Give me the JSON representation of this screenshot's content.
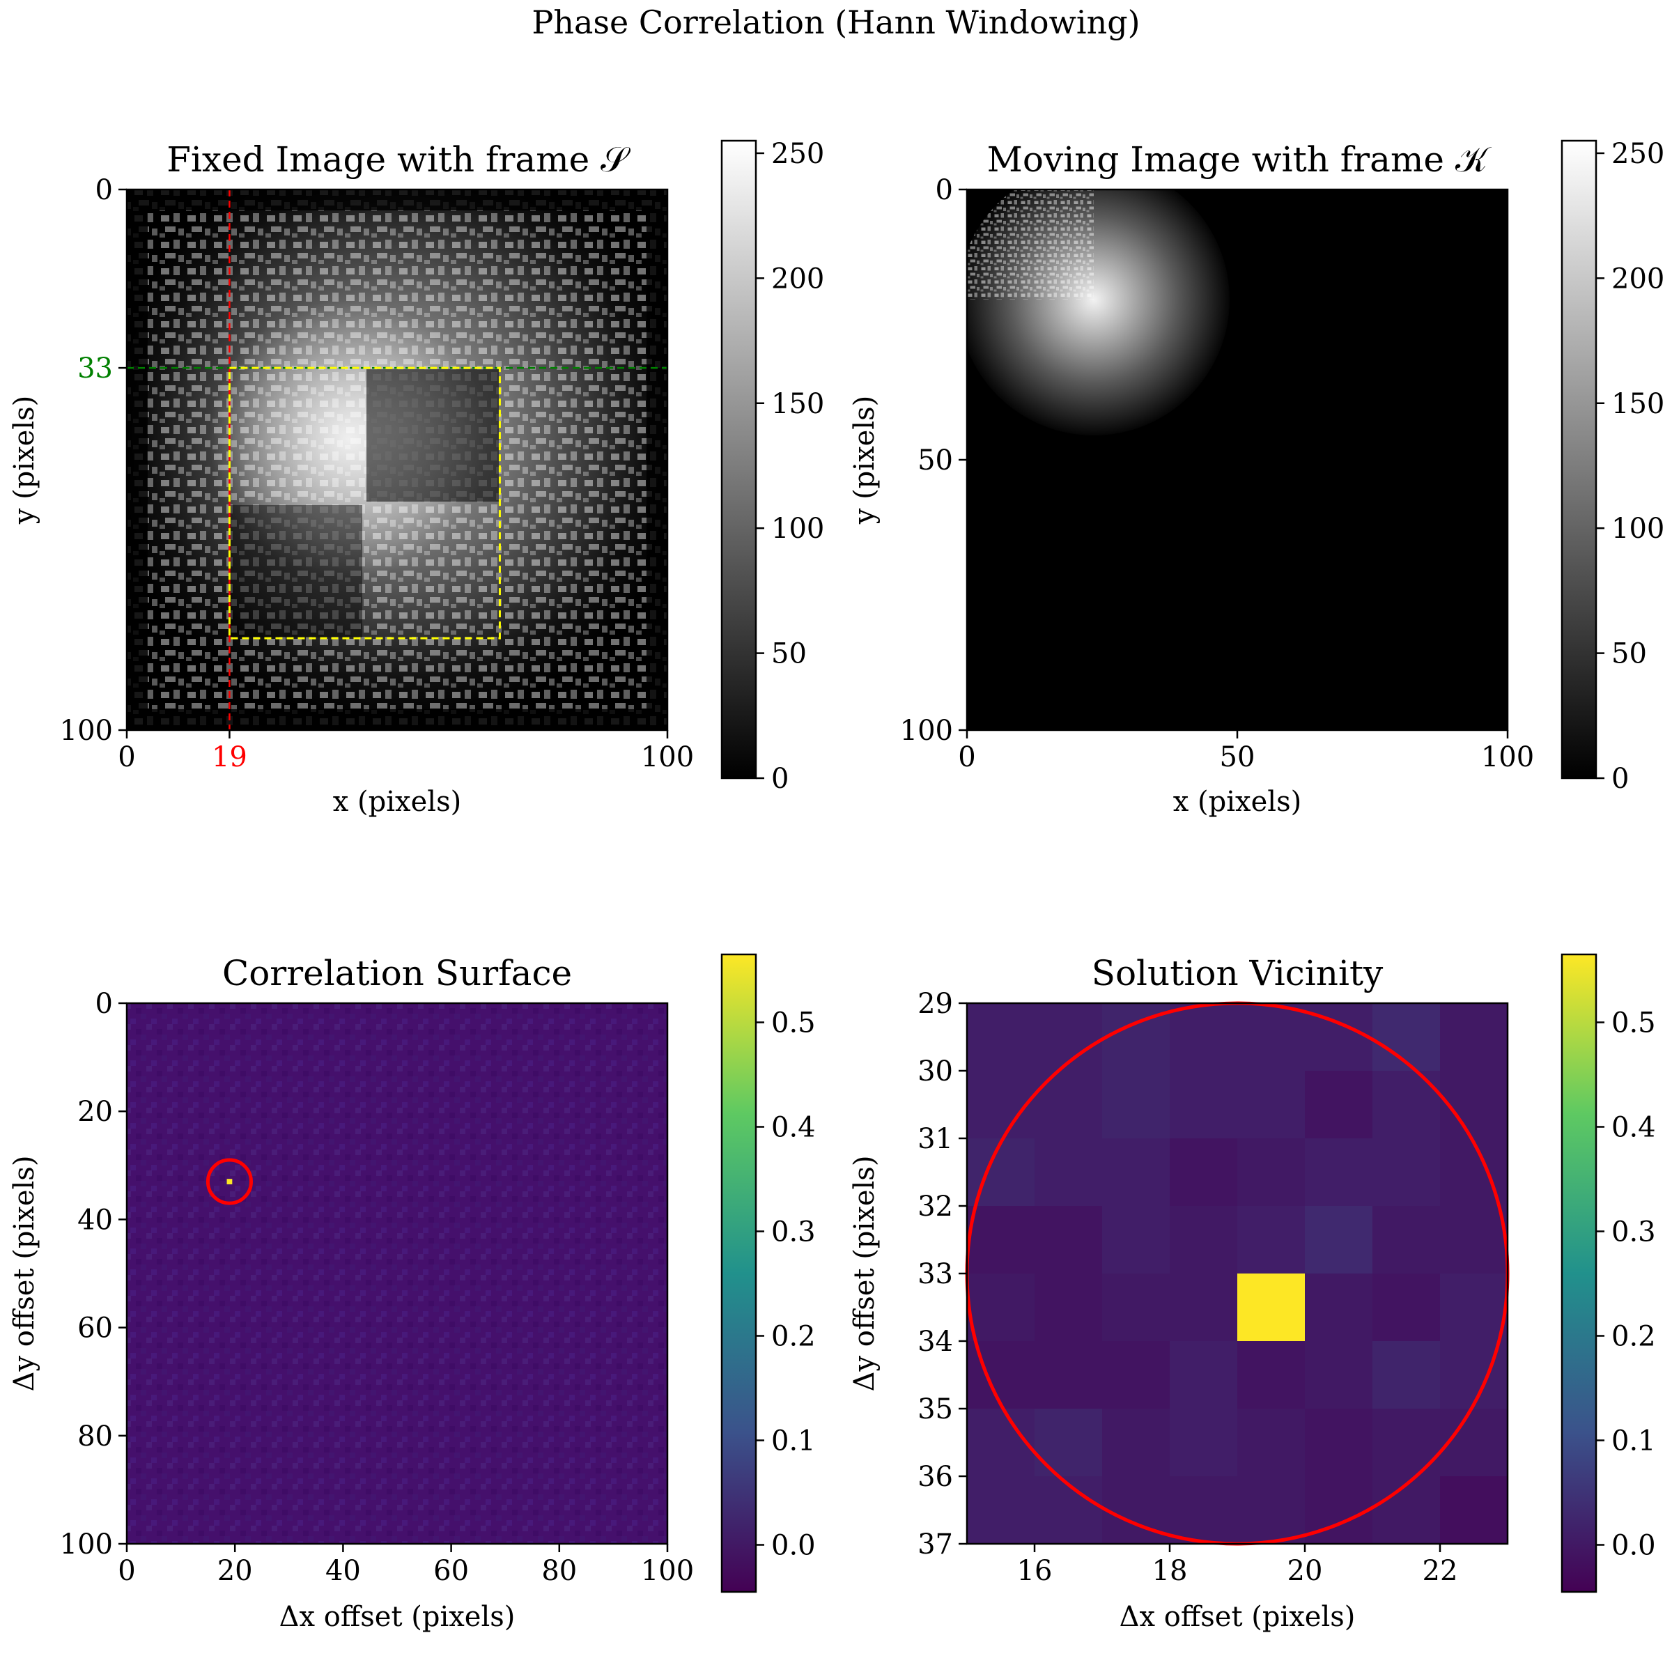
{
  "figure": {
    "suptitle": "Phase Correlation (Hann Windowing)"
  },
  "chart_data": [
    {
      "id": "fixed",
      "type": "heatmap",
      "title": "Fixed Image with frame 𝒮",
      "xlabel": "x (pixels)",
      "ylabel": "y (pixels)",
      "xlim": [
        0,
        100
      ],
      "ylim": [
        100,
        0
      ],
      "xticks": [
        "0",
        "100"
      ],
      "yticks": [
        "0",
        "100"
      ],
      "colormap": "gray",
      "colorbar": {
        "ticks": [
          "0",
          "50",
          "100",
          "150",
          "200",
          "250"
        ],
        "range": [
          0,
          255
        ]
      },
      "markers": {
        "vline": {
          "x": 19,
          "label": "19",
          "color": "#ff0000"
        },
        "hline": {
          "y": 33,
          "label": "33",
          "color": "#008000"
        },
        "frame_box": {
          "x0": 19,
          "y0": 33,
          "x1": 69,
          "y1": 83,
          "color": "#ffff00"
        }
      }
    },
    {
      "id": "moving",
      "type": "heatmap",
      "title": "Moving Image with frame 𝒦",
      "xlabel": "x (pixels)",
      "ylabel": "y (pixels)",
      "xlim": [
        0,
        100
      ],
      "ylim": [
        100,
        0
      ],
      "xticks": [
        "0",
        "50",
        "100"
      ],
      "yticks": [
        "0",
        "50",
        "100"
      ],
      "colormap": "gray",
      "colorbar": {
        "ticks": [
          "0",
          "50",
          "100",
          "150",
          "200",
          "250"
        ],
        "range": [
          0,
          255
        ]
      }
    },
    {
      "id": "corr",
      "type": "heatmap",
      "title": "Correlation Surface",
      "xlabel": "Δx offset (pixels)",
      "ylabel": "Δy offset (pixels)",
      "xlim": [
        0,
        100
      ],
      "ylim": [
        100,
        0
      ],
      "xticks": [
        "0",
        "20",
        "40",
        "60",
        "80",
        "100"
      ],
      "yticks": [
        "0",
        "20",
        "40",
        "60",
        "80",
        "100"
      ],
      "colormap": "viridis",
      "colorbar": {
        "ticks": [
          "0.0",
          "0.1",
          "0.2",
          "0.3",
          "0.4",
          "0.5"
        ],
        "range": [
          -0.045,
          0.565
        ]
      },
      "peak": {
        "x": 19,
        "y": 33,
        "value": 0.565
      },
      "circle": {
        "cx": 19,
        "cy": 33,
        "r": 4,
        "color": "#ff0000"
      }
    },
    {
      "id": "vicinity",
      "type": "heatmap",
      "title": "Solution Vicinity",
      "xlabel": "Δx offset (pixels)",
      "ylabel": "Δy offset (pixels)",
      "xlim": [
        15,
        23
      ],
      "ylim": [
        37,
        29
      ],
      "xticks": [
        "16",
        "18",
        "20",
        "22"
      ],
      "yticks": [
        "29",
        "30",
        "31",
        "32",
        "33",
        "34",
        "35",
        "36",
        "37"
      ],
      "colormap": "viridis",
      "colorbar": {
        "ticks": [
          "0.0",
          "0.1",
          "0.2",
          "0.3",
          "0.4",
          "0.5"
        ],
        "range": [
          -0.045,
          0.565
        ]
      },
      "cells_origin": {
        "x": 15,
        "y": 29
      },
      "cells": [
        [
          0.01,
          0.01,
          0.02,
          0.01,
          0.01,
          0.01,
          0.03,
          0.0
        ],
        [
          0.01,
          0.01,
          0.02,
          0.01,
          0.01,
          -0.01,
          0.01,
          0.0
        ],
        [
          0.02,
          0.01,
          0.01,
          -0.01,
          0.0,
          0.01,
          0.01,
          0.0
        ],
        [
          -0.01,
          -0.01,
          0.01,
          0.0,
          0.01,
          0.03,
          0.0,
          0.0
        ],
        [
          0.0,
          -0.01,
          0.0,
          0.0,
          0.565,
          0.0,
          -0.01,
          0.01
        ],
        [
          -0.01,
          -0.01,
          -0.01,
          0.01,
          -0.01,
          0.0,
          0.02,
          0.01
        ],
        [
          0.01,
          0.02,
          0.0,
          0.01,
          0.0,
          -0.01,
          0.0,
          0.0
        ],
        [
          0.01,
          0.01,
          0.0,
          0.0,
          0.0,
          -0.01,
          0.0,
          -0.02
        ]
      ],
      "circle": {
        "cx": 19,
        "cy": 33,
        "r": 4,
        "color": "#ff0000"
      }
    }
  ]
}
